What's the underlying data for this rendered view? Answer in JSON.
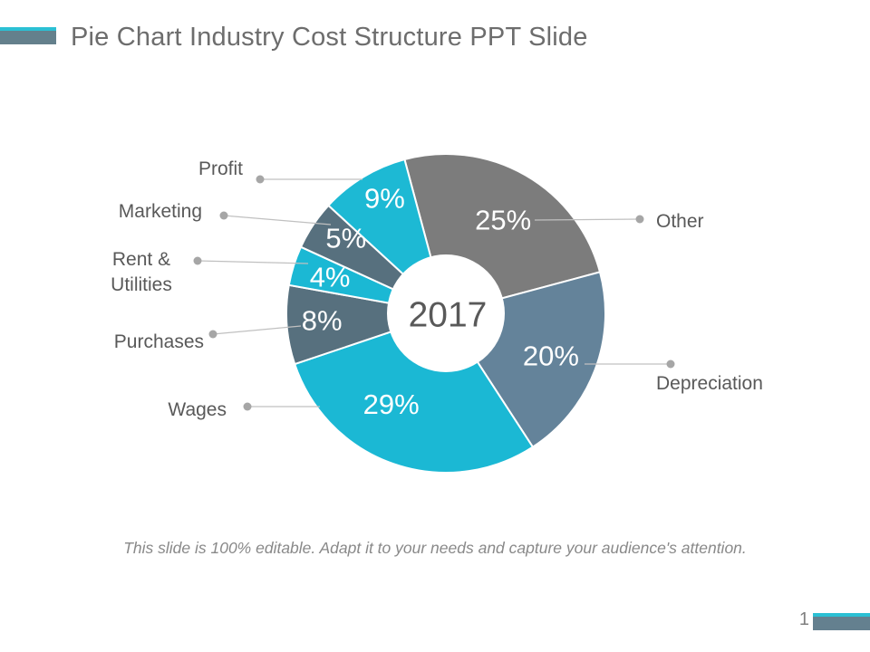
{
  "slide": {
    "title": "Pie Chart Industry Cost Structure PPT Slide",
    "footer_note": "This slide is 100% editable. Adapt it to your needs and capture your audience's attention.",
    "page_number": "1"
  },
  "chart_data": {
    "type": "pie",
    "donut": true,
    "title": "Industry Cost Structure",
    "center_label": "2017",
    "start_angle_deg": -15,
    "unit": "%",
    "categories": [
      "Other",
      "Depreciation",
      "Wages",
      "Purchases",
      "Rent & Utilities",
      "Marketing",
      "Profit"
    ],
    "values": [
      25,
      20,
      29,
      8,
      4,
      5,
      9
    ],
    "labels": [
      "25%",
      "20%",
      "29%",
      "8%",
      "4%",
      "5%",
      "9%"
    ],
    "colors": [
      "#7C7C7C",
      "#64839A",
      "#1BB8D4",
      "#57707E",
      "#1BB8D4",
      "#57707E",
      "#1DB9D4"
    ],
    "legend_position": "callout-labels"
  },
  "colors": {
    "accent_cyan": "#2BC0D4",
    "accent_slate": "#64808C",
    "title_text": "#6D6D6D",
    "label_text": "#595959",
    "center_text": "#595959",
    "percent_text": "#FFFFFF",
    "footer_text": "#898989",
    "leader_line": "#C0C0C0",
    "leader_dot": "#A6A6A6"
  }
}
